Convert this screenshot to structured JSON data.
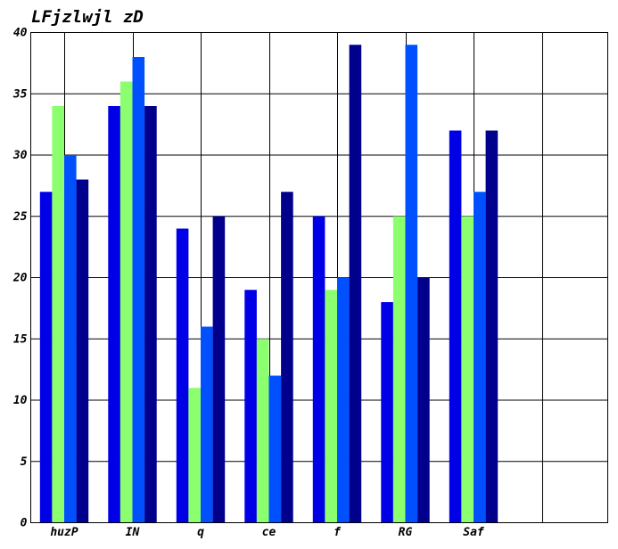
{
  "chart_data": {
    "type": "bar",
    "title": "LFjzlwjl zD",
    "xlabel": "",
    "ylabel": "",
    "categories": [
      "huzP",
      "IN",
      "q",
      "ce",
      "f",
      "RG",
      "Saf"
    ],
    "ylim": [
      0,
      40
    ],
    "yticks": [
      0,
      5,
      10,
      15,
      20,
      25,
      30,
      35,
      40
    ],
    "grid": true,
    "legend": "none",
    "series": [
      {
        "color": "#0000e6",
        "values": [
          27,
          34,
          24,
          19,
          25,
          18,
          32
        ]
      },
      {
        "color": "#8cff6e",
        "values": [
          34,
          36,
          11,
          15,
          19,
          25,
          25
        ]
      },
      {
        "color": "#0050ff",
        "values": [
          30,
          38,
          16,
          12,
          20,
          39,
          27
        ]
      },
      {
        "color": "#00008c",
        "values": [
          28,
          34,
          25,
          27,
          39,
          20,
          32
        ]
      }
    ]
  }
}
